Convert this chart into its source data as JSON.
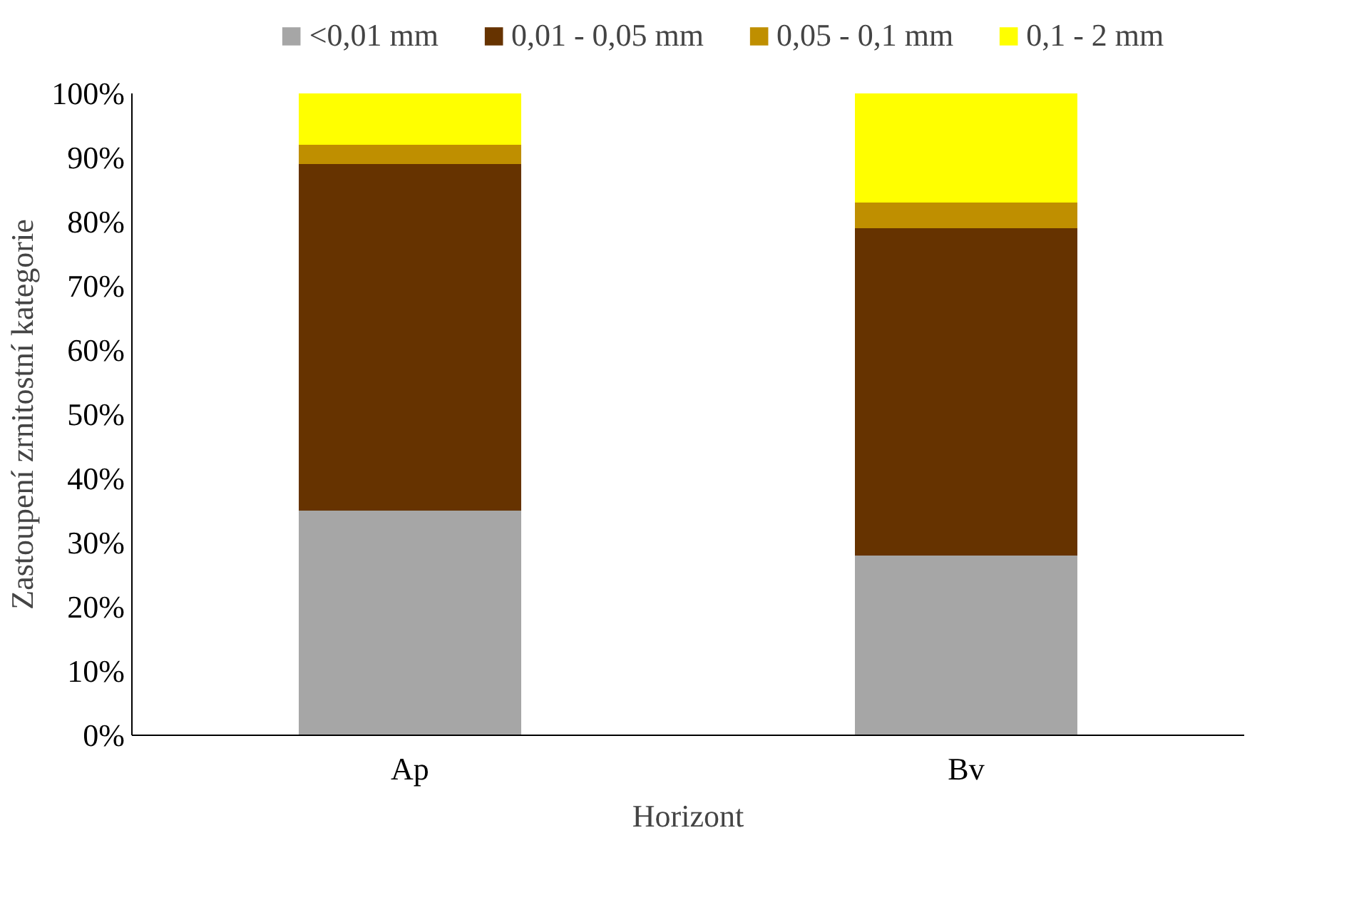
{
  "chart_data": {
    "type": "bar",
    "stacked": true,
    "xlabel": "Horizont",
    "ylabel": "Zastoupení zrnitostní kategorie",
    "categories": [
      "Ap",
      "Bv"
    ],
    "series": [
      {
        "name": "<0,01 mm",
        "color": "#a6a6a6",
        "values": [
          35,
          28
        ]
      },
      {
        "name": "0,01 - 0,05 mm",
        "color": "#663300",
        "values": [
          54,
          51
        ]
      },
      {
        "name": "0,05 - 0,1 mm",
        "color": "#bf8f00",
        "values": [
          3,
          4
        ]
      },
      {
        "name": "0,1 - 2 mm",
        "color": "#ffff00",
        "values": [
          8,
          17
        ]
      }
    ],
    "ylim": [
      0,
      100
    ],
    "yticks": [
      {
        "value": 0,
        "label": "0%"
      },
      {
        "value": 10,
        "label": "10%"
      },
      {
        "value": 20,
        "label": "20%"
      },
      {
        "value": 30,
        "label": "30%"
      },
      {
        "value": 40,
        "label": "40%"
      },
      {
        "value": 50,
        "label": "50%"
      },
      {
        "value": 60,
        "label": "60%"
      },
      {
        "value": 70,
        "label": "70%"
      },
      {
        "value": 80,
        "label": "80%"
      },
      {
        "value": 90,
        "label": "90%"
      },
      {
        "value": 100,
        "label": "100%"
      }
    ],
    "grid": false,
    "legend": "top"
  }
}
